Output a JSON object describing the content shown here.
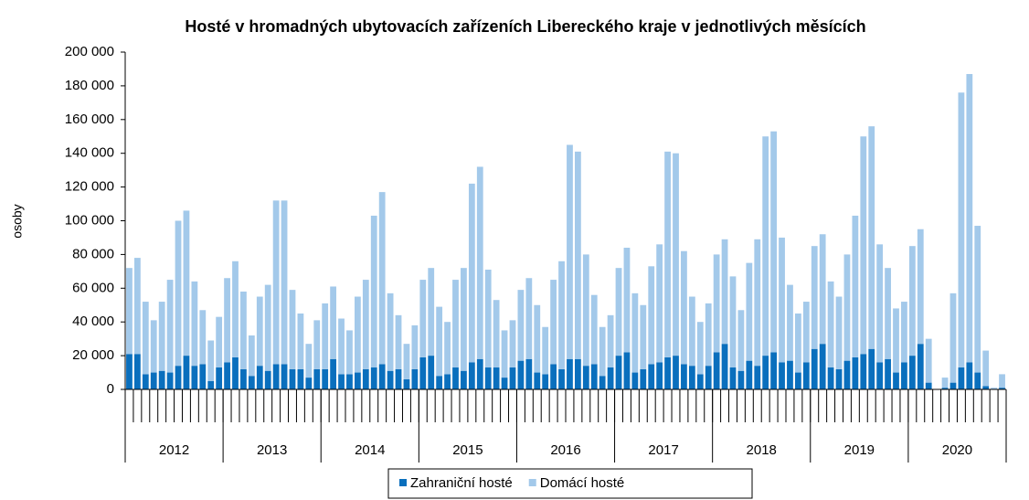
{
  "chart_data": {
    "type": "stacked_bar",
    "title": "Hosté v hromadných ubytovacích zařízeních Libereckého kraje v jednotlivých měsících",
    "ylabel": "osoby",
    "years": [
      "2012",
      "2013",
      "2014",
      "2015",
      "2016",
      "2017",
      "2018",
      "2019",
      "2020"
    ],
    "ylim": [
      0,
      200000
    ],
    "yticks": [
      0,
      {
        "value": 20000,
        "label": "20 000"
      },
      {
        "value": 40000,
        "label": "40 000"
      },
      {
        "value": 60000,
        "label": "60 000"
      },
      {
        "value": 80000,
        "label": "80 000"
      },
      {
        "value": 100000,
        "label": "100 000"
      },
      {
        "value": 120000,
        "label": "120 000"
      },
      {
        "value": 140000,
        "label": "140 000"
      },
      {
        "value": 160000,
        "label": "160 000"
      },
      {
        "value": 180000,
        "label": "180 000"
      },
      {
        "value": 200000,
        "label": "200 000"
      }
    ],
    "series": [
      {
        "name": "Zahraniční hosté",
        "color": "#0a6fbd",
        "values": [
          21000,
          21000,
          9000,
          10000,
          11000,
          10000,
          14000,
          20000,
          14000,
          15000,
          5000,
          13000,
          16000,
          19000,
          12000,
          8000,
          14000,
          11000,
          15000,
          15000,
          12000,
          12000,
          7000,
          12000,
          12000,
          18000,
          9000,
          9000,
          10000,
          12000,
          13000,
          15000,
          11000,
          12000,
          6000,
          12000,
          19000,
          20000,
          8000,
          9000,
          13000,
          11000,
          16000,
          18000,
          13000,
          13000,
          7000,
          13000,
          17000,
          18000,
          10000,
          9000,
          15000,
          12000,
          18000,
          18000,
          14000,
          15000,
          8000,
          13000,
          20000,
          22000,
          10000,
          12000,
          15000,
          16000,
          19000,
          20000,
          15000,
          14000,
          9000,
          14000,
          22000,
          27000,
          13000,
          11000,
          17000,
          14000,
          20000,
          22000,
          16000,
          17000,
          10000,
          16000,
          24000,
          27000,
          13000,
          12000,
          17000,
          19000,
          21000,
          24000,
          16000,
          18000,
          10000,
          16000,
          20000,
          27000,
          4000,
          0,
          1000,
          4000,
          13000,
          16000,
          10000,
          2000,
          0,
          1000
        ]
      },
      {
        "name": "Domácí hosté",
        "color": "#a3c9ea",
        "values": [
          51000,
          57000,
          43000,
          31000,
          41000,
          55000,
          86000,
          86000,
          50000,
          32000,
          24000,
          30000,
          50000,
          57000,
          46000,
          24000,
          41000,
          51000,
          97000,
          97000,
          47000,
          33000,
          20000,
          29000,
          39000,
          43000,
          33000,
          26000,
          45000,
          53000,
          90000,
          102000,
          46000,
          32000,
          21000,
          26000,
          46000,
          52000,
          41000,
          31000,
          52000,
          61000,
          106000,
          114000,
          58000,
          40000,
          28000,
          28000,
          42000,
          48000,
          40000,
          28000,
          50000,
          64000,
          127000,
          123000,
          66000,
          41000,
          29000,
          31000,
          52000,
          62000,
          47000,
          38000,
          58000,
          70000,
          122000,
          120000,
          67000,
          41000,
          31000,
          37000,
          58000,
          62000,
          54000,
          36000,
          58000,
          75000,
          130000,
          131000,
          74000,
          45000,
          35000,
          36000,
          61000,
          65000,
          51000,
          43000,
          63000,
          84000,
          129000,
          132000,
          70000,
          54000,
          38000,
          36000,
          65000,
          68000,
          26000,
          0,
          6000,
          53000,
          163000,
          171000,
          87000,
          21000,
          1000,
          8000
        ]
      }
    ]
  }
}
